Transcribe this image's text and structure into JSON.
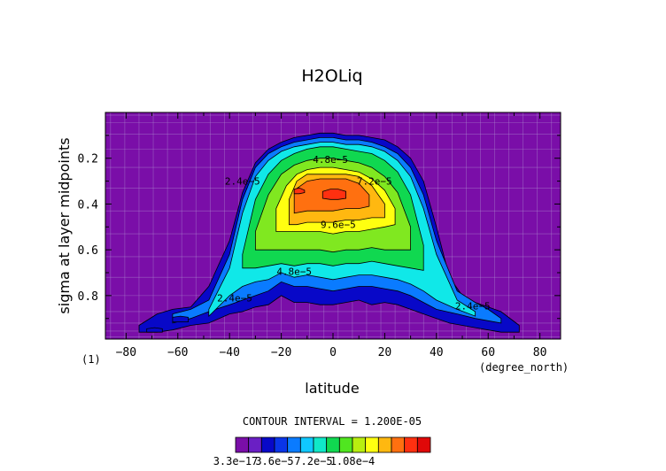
{
  "chart_data": {
    "type": "heatmap",
    "title": "H2OLiq",
    "xlabel": "latitude",
    "ylabel": "sigma at layer midpoints",
    "x_unit_label": "(degree_north)",
    "y_unit_label": "(1)",
    "x_ticks": [
      -80,
      -60,
      -40,
      -20,
      0,
      20,
      40,
      60,
      80
    ],
    "x_tick_labels": [
      "−80",
      "−60",
      "−40",
      "−20",
      "0",
      "20",
      "40",
      "60",
      "80"
    ],
    "y_ticks": [
      0.2,
      0.4,
      0.6,
      0.8
    ],
    "y_tick_labels": [
      "0.2",
      "0.4",
      "0.6",
      "0.8"
    ],
    "xlim": [
      -88,
      88
    ],
    "ylim": [
      0.0,
      0.99
    ],
    "y_inverted": true,
    "contour_interval_text": "CONTOUR INTERVAL = 1.200E-05",
    "contour_labels": [
      {
        "text": "4.8e−5",
        "x": -1,
        "y": 0.205
      },
      {
        "text": "2.4e−5",
        "x": -35,
        "y": 0.3
      },
      {
        "text": "7.2e−5",
        "x": 16,
        "y": 0.3
      },
      {
        "text": "9.6e−5",
        "x": 2,
        "y": 0.49
      },
      {
        "text": "4.8e−5",
        "x": -15,
        "y": 0.695
      },
      {
        "text": "2.4e−5",
        "x": -38,
        "y": 0.81
      },
      {
        "text": "2.4e−5",
        "x": 54,
        "y": 0.845
      }
    ],
    "colorbar": {
      "labels": [
        "3.3e−17",
        "3.6e−5",
        "7.2e−5",
        "1.08e−4"
      ],
      "label_values": [
        3.3e-17,
        3.6e-05,
        7.2e-05,
        0.000108
      ],
      "colors": [
        "#7a0ea8",
        "#6a1fc4",
        "#0808c8",
        "#0a35e8",
        "#0a7bff",
        "#10c8ff",
        "#10e8c8",
        "#10d850",
        "#50e620",
        "#b8ee10",
        "#ffff10",
        "#ffb810",
        "#ff7010",
        "#ff3010",
        "#e00808"
      ]
    },
    "levels": [
      {
        "value": 1.2e-05,
        "color": "#0808c8",
        "lat": [
          -75,
          -68,
          -62,
          -55,
          -48,
          -40,
          -35,
          -30,
          -25,
          -20,
          -15,
          -10,
          -5,
          0,
          5,
          10,
          15,
          20,
          25,
          30,
          35,
          40,
          45,
          50,
          55,
          60,
          65,
          72
        ],
        "top": [
          0.93,
          0.88,
          0.86,
          0.85,
          0.76,
          0.56,
          0.35,
          0.22,
          0.16,
          0.13,
          0.11,
          0.1,
          0.09,
          0.09,
          0.1,
          0.1,
          0.11,
          0.12,
          0.15,
          0.2,
          0.3,
          0.5,
          0.72,
          0.8,
          0.83,
          0.85,
          0.87,
          0.93
        ],
        "bottom": [
          0.96,
          0.96,
          0.95,
          0.93,
          0.92,
          0.88,
          0.87,
          0.85,
          0.84,
          0.8,
          0.83,
          0.83,
          0.84,
          0.84,
          0.83,
          0.82,
          0.84,
          0.83,
          0.84,
          0.86,
          0.88,
          0.9,
          0.92,
          0.93,
          0.94,
          0.95,
          0.96,
          0.96
        ]
      },
      {
        "value": 2.4e-05,
        "color": "#0a7bff",
        "lat": [
          -62,
          -55,
          -48,
          -40,
          -35,
          -30,
          -25,
          -20,
          -15,
          -10,
          -5,
          0,
          5,
          10,
          15,
          20,
          25,
          30,
          35,
          40,
          48,
          55,
          60,
          65
        ],
        "top": [
          0.88,
          0.86,
          0.82,
          0.62,
          0.38,
          0.24,
          0.18,
          0.15,
          0.13,
          0.12,
          0.11,
          0.11,
          0.12,
          0.12,
          0.13,
          0.15,
          0.18,
          0.24,
          0.36,
          0.56,
          0.78,
          0.83,
          0.86,
          0.9
        ],
        "bottom": [
          0.92,
          0.9,
          0.87,
          0.84,
          0.82,
          0.8,
          0.78,
          0.74,
          0.76,
          0.76,
          0.77,
          0.78,
          0.77,
          0.76,
          0.76,
          0.77,
          0.78,
          0.8,
          0.83,
          0.86,
          0.88,
          0.9,
          0.91,
          0.92
        ]
      },
      {
        "value": 3.6e-05,
        "color": "#10e8e8",
        "lat": [
          -48,
          -40,
          -35,
          -30,
          -25,
          -20,
          -15,
          -10,
          -5,
          0,
          5,
          10,
          15,
          20,
          25,
          30,
          35,
          40,
          48,
          55
        ],
        "top": [
          0.86,
          0.68,
          0.44,
          0.28,
          0.21,
          0.17,
          0.15,
          0.14,
          0.13,
          0.13,
          0.14,
          0.14,
          0.15,
          0.17,
          0.21,
          0.28,
          0.42,
          0.62,
          0.82,
          0.87
        ],
        "bottom": [
          0.89,
          0.8,
          0.76,
          0.74,
          0.73,
          0.7,
          0.72,
          0.71,
          0.72,
          0.73,
          0.72,
          0.71,
          0.71,
          0.72,
          0.73,
          0.75,
          0.78,
          0.82,
          0.86,
          0.89
        ]
      },
      {
        "value": 4.8e-05,
        "color": "#10d850",
        "lat": [
          -35,
          -30,
          -25,
          -20,
          -15,
          -10,
          -5,
          0,
          5,
          10,
          15,
          20,
          25,
          30,
          35
        ],
        "top": [
          0.62,
          0.38,
          0.27,
          0.21,
          0.18,
          0.16,
          0.15,
          0.15,
          0.16,
          0.17,
          0.18,
          0.21,
          0.26,
          0.36,
          0.58
        ],
        "bottom": [
          0.68,
          0.68,
          0.67,
          0.66,
          0.67,
          0.66,
          0.66,
          0.67,
          0.66,
          0.66,
          0.65,
          0.66,
          0.67,
          0.68,
          0.69
        ]
      },
      {
        "value": 6e-05,
        "color": "#80e820",
        "lat": [
          -30,
          -25,
          -20,
          -15,
          -10,
          -5,
          0,
          5,
          10,
          15,
          20,
          25,
          30
        ],
        "top": [
          0.52,
          0.36,
          0.27,
          0.23,
          0.21,
          0.2,
          0.2,
          0.21,
          0.22,
          0.24,
          0.28,
          0.35,
          0.5
        ],
        "bottom": [
          0.6,
          0.6,
          0.6,
          0.6,
          0.6,
          0.6,
          0.61,
          0.6,
          0.6,
          0.59,
          0.6,
          0.6,
          0.6
        ]
      },
      {
        "value": 7.2e-05,
        "color": "#ffff10",
        "lat": [
          -22,
          -18,
          -14,
          -10,
          -5,
          0,
          5,
          10,
          15,
          20,
          24
        ],
        "top": [
          0.42,
          0.32,
          0.27,
          0.25,
          0.24,
          0.24,
          0.25,
          0.26,
          0.29,
          0.34,
          0.42
        ],
        "bottom": [
          0.52,
          0.52,
          0.52,
          0.52,
          0.52,
          0.53,
          0.52,
          0.52,
          0.51,
          0.5,
          0.49
        ]
      },
      {
        "value": 8.4e-05,
        "color": "#ffb810",
        "lat": [
          -17,
          -14,
          -10,
          -5,
          0,
          5,
          10,
          15,
          20
        ],
        "top": [
          0.38,
          0.3,
          0.27,
          0.27,
          0.27,
          0.27,
          0.28,
          0.32,
          0.4
        ],
        "bottom": [
          0.49,
          0.49,
          0.48,
          0.48,
          0.48,
          0.47,
          0.47,
          0.46,
          0.46
        ]
      },
      {
        "value": 9.6e-05,
        "color": "#ff7010",
        "lat": [
          -15,
          -10,
          -5,
          0,
          5,
          10,
          14
        ],
        "top": [
          0.34,
          0.3,
          0.29,
          0.29,
          0.29,
          0.31,
          0.36
        ],
        "bottom": [
          0.44,
          0.43,
          0.43,
          0.43,
          0.42,
          0.42,
          0.41
        ]
      },
      {
        "value": 0.000108,
        "color": "#ff3010",
        "lat": [
          -15,
          -13,
          -11
        ],
        "top": [
          0.335,
          0.33,
          0.34
        ],
        "bottom": [
          0.355,
          0.355,
          0.35
        ]
      },
      {
        "value": 0.000108,
        "color": "#ff3010",
        "lat": [
          -4,
          -1,
          2,
          5
        ],
        "top": [
          0.345,
          0.335,
          0.335,
          0.345
        ],
        "bottom": [
          0.375,
          0.38,
          0.38,
          0.375
        ]
      },
      {
        "value": 1.2e-05,
        "color": "#0808c8",
        "lat": [
          -72,
          -69,
          -66
        ],
        "top": [
          0.945,
          0.94,
          0.945
        ],
        "bottom": [
          0.96,
          0.96,
          0.96
        ]
      },
      {
        "value": 1.2e-05,
        "color": "#0808c8",
        "lat": [
          -62,
          -59,
          -56
        ],
        "top": [
          0.895,
          0.89,
          0.895
        ],
        "bottom": [
          0.915,
          0.915,
          0.915
        ]
      }
    ]
  }
}
